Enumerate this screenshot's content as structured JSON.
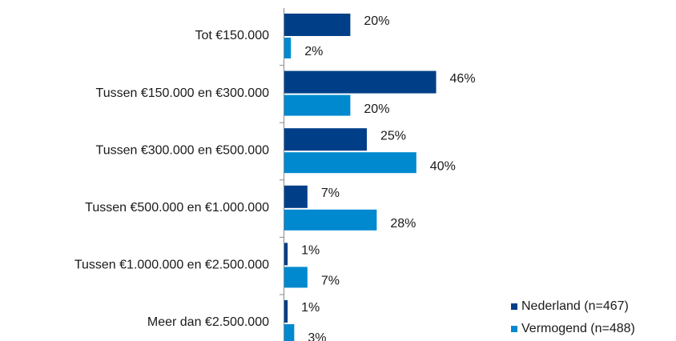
{
  "chart_data": {
    "type": "barh",
    "categories": [
      "Tot €150.000",
      "Tussen €150.000  en €300.000",
      "Tussen €300.000  en €500.000",
      "Tussen €500.000  en €1.000.000",
      "Tussen €1.000.000  en €2.500.000",
      "Meer dan €2.500.000"
    ],
    "series": [
      {
        "name": "Nederland (n=467)",
        "color": "#003f87",
        "values": [
          20,
          46,
          25,
          7,
          1,
          1
        ],
        "value_labels": [
          "20%",
          "46%",
          "25%",
          "7%",
          "1%",
          "1%"
        ]
      },
      {
        "name": "Vermogend (n=488)",
        "color": "#0089cf",
        "values": [
          2,
          20,
          40,
          28,
          7,
          3
        ],
        "value_labels": [
          "2%",
          "20%",
          "40%",
          "28%",
          "7%",
          "3%"
        ]
      }
    ],
    "legend": "bottom-right"
  }
}
